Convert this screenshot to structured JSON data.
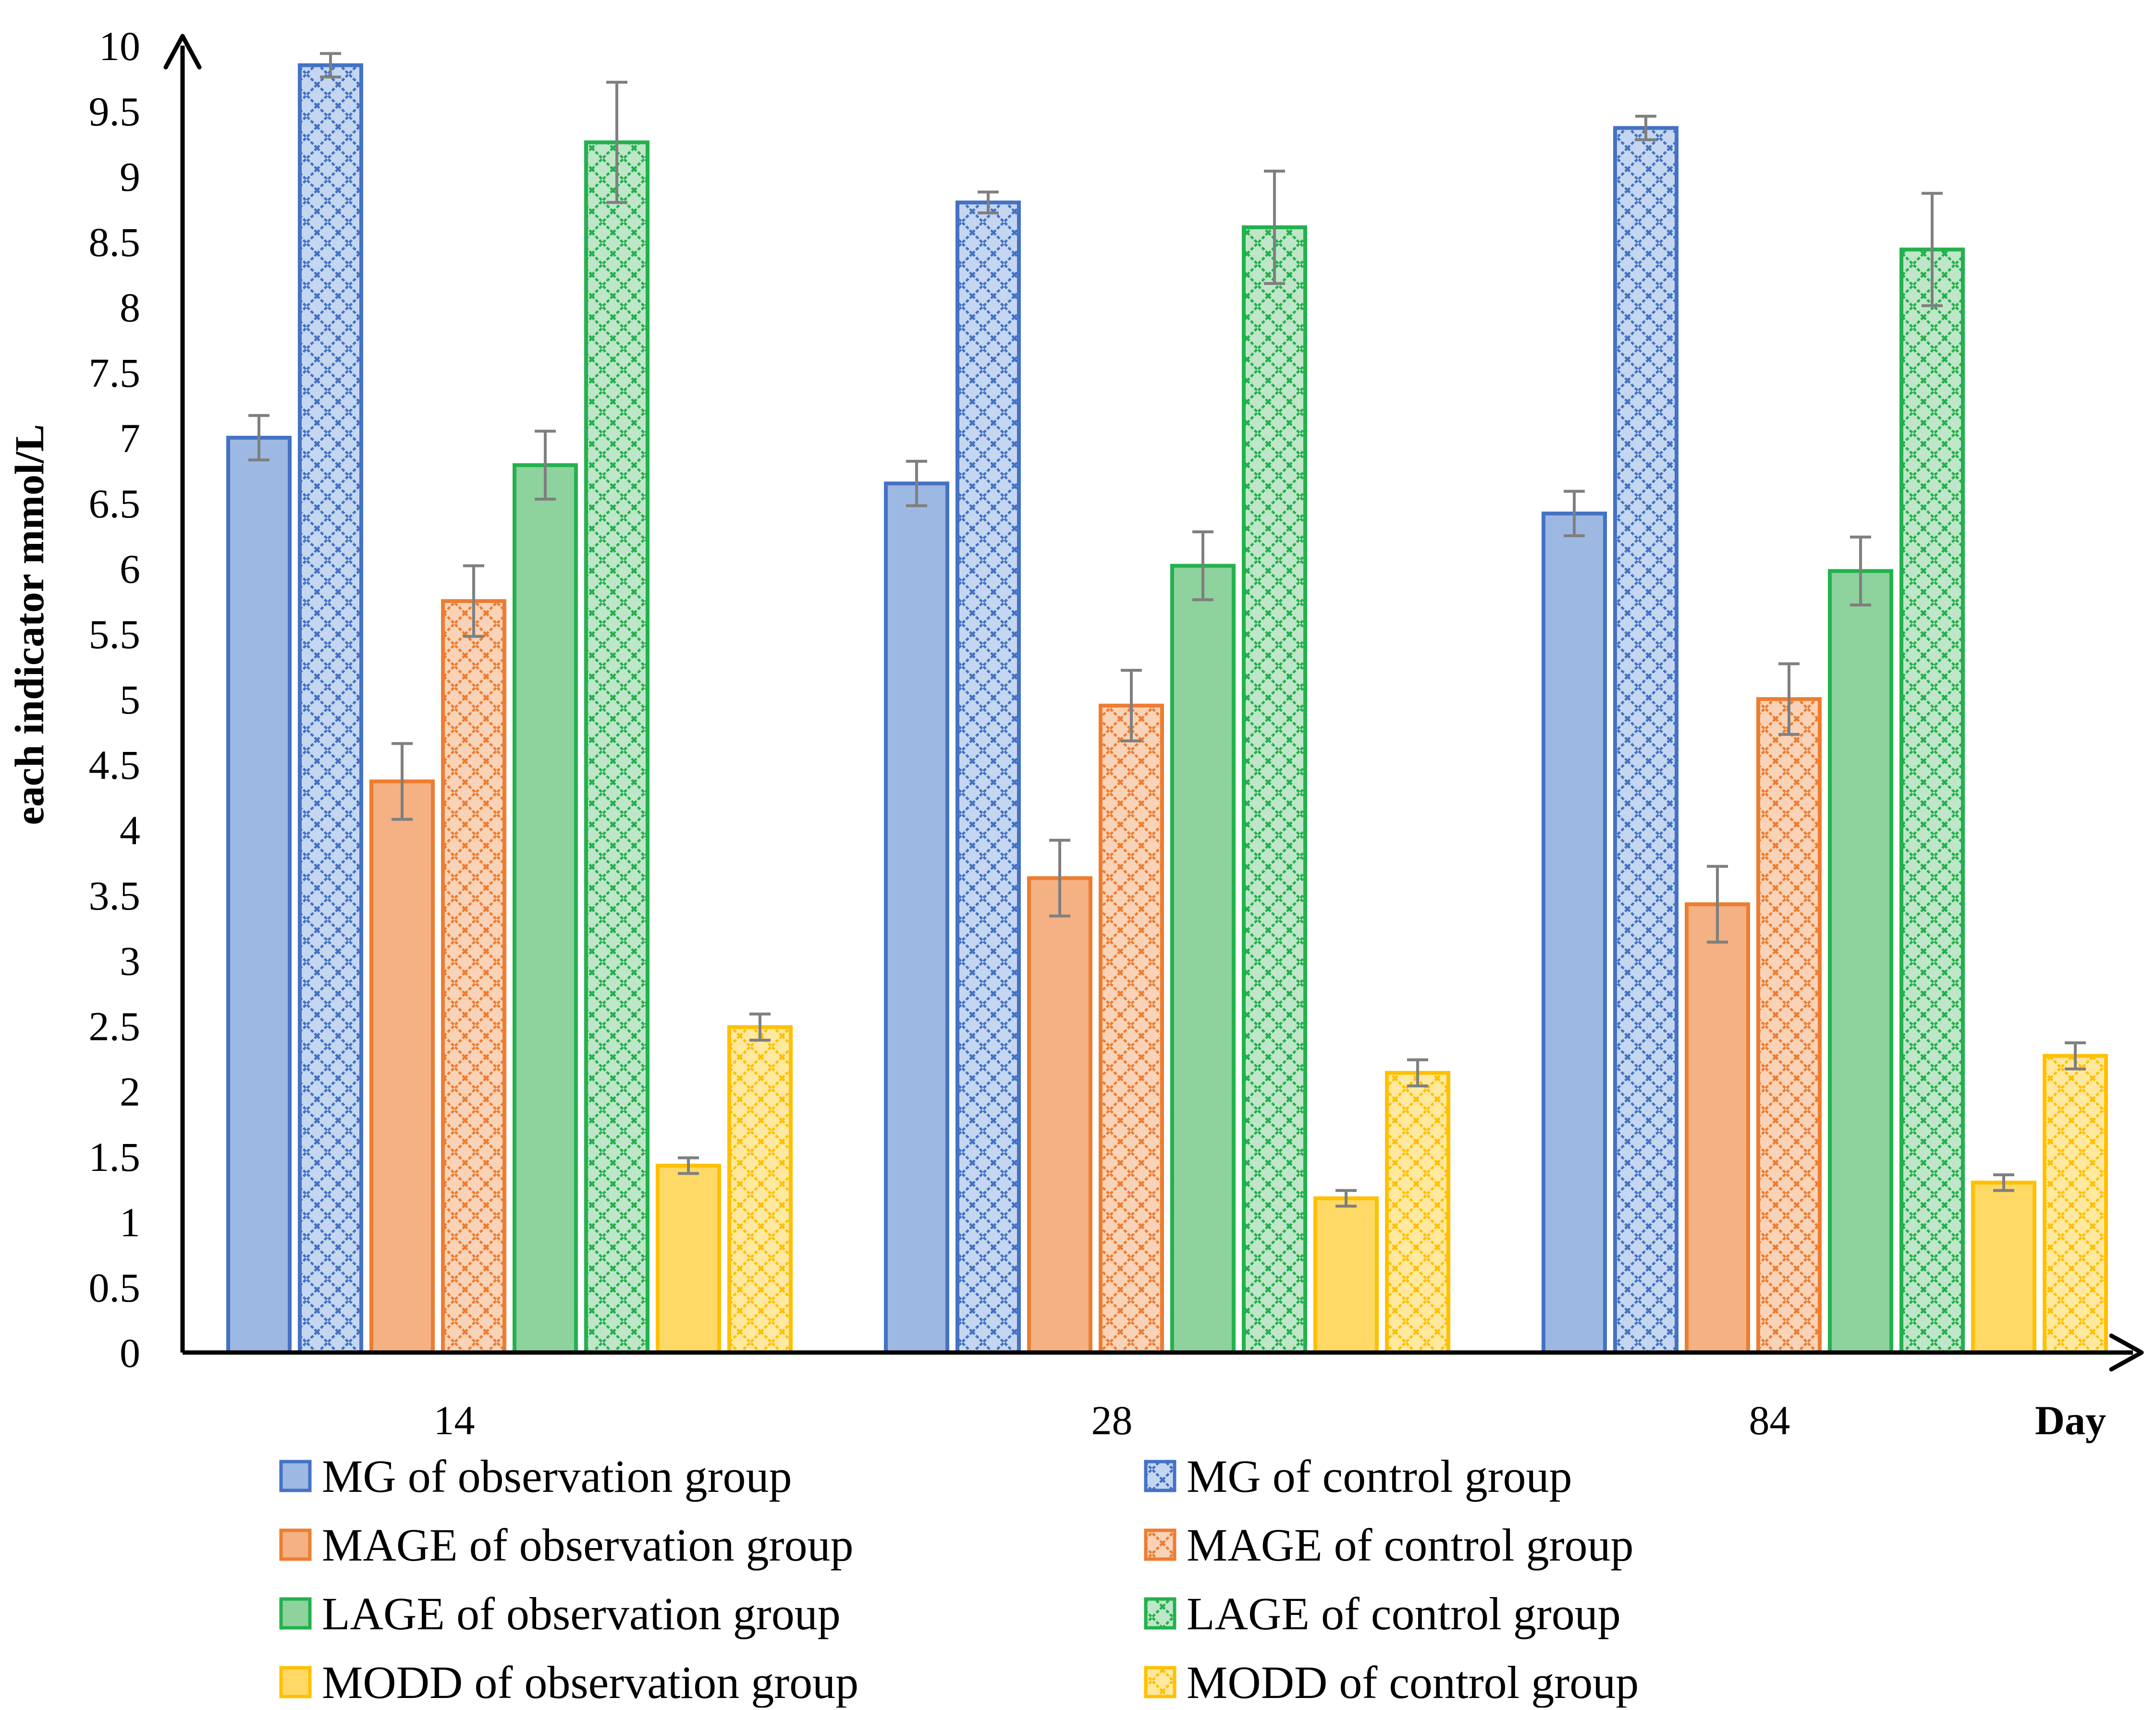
{
  "chart_data": {
    "type": "bar",
    "title": "",
    "xlabel": "Day",
    "ylabel": "each indicator mmol/L",
    "ylim": [
      0,
      10
    ],
    "ytick_step": 0.5,
    "yticks": [
      "0",
      "0.5",
      "1",
      "1.5",
      "2",
      "2.5",
      "3",
      "3.5",
      "4",
      "4.5",
      "5",
      "5.5",
      "6",
      "6.5",
      "7",
      "7.5",
      "8",
      "8.5",
      "9",
      "9.5",
      "10"
    ],
    "categories": [
      "14",
      "28",
      "84"
    ],
    "grid": false,
    "legend_position": "bottom",
    "series": [
      {
        "name": "MG of observation group",
        "values": [
          7.0,
          6.65,
          6.42
        ],
        "errors": [
          0.17,
          0.17,
          0.17
        ],
        "color": "#9DB8E2",
        "stroke": "#4472C4",
        "pattern": "solid"
      },
      {
        "name": "MG of control group",
        "values": [
          9.85,
          8.8,
          9.37
        ],
        "errors": [
          0.09,
          0.08,
          0.09
        ],
        "color": "#C5D7F0",
        "stroke": "#4472C4",
        "pattern": "hatched"
      },
      {
        "name": "MAGE of observation group",
        "values": [
          4.37,
          3.63,
          3.43
        ],
        "errors": [
          0.29,
          0.29,
          0.29
        ],
        "color": "#F4B183",
        "stroke": "#ED7D31",
        "pattern": "solid"
      },
      {
        "name": "MAGE of control group",
        "values": [
          5.75,
          4.95,
          5.0
        ],
        "errors": [
          0.27,
          0.27,
          0.27
        ],
        "color": "#F9D3B8",
        "stroke": "#ED7D31",
        "pattern": "hatched"
      },
      {
        "name": "LAGE of observation group",
        "values": [
          6.79,
          6.02,
          5.98
        ],
        "errors": [
          0.26,
          0.26,
          0.26
        ],
        "color": "#8ED29E",
        "stroke": "#23B14D",
        "pattern": "solid"
      },
      {
        "name": "LAGE of control group",
        "values": [
          9.26,
          8.61,
          8.44
        ],
        "errors": [
          0.46,
          0.43,
          0.43
        ],
        "color": "#BFE6C8",
        "stroke": "#23B14D",
        "pattern": "hatched"
      },
      {
        "name": "MODD of observation group",
        "values": [
          1.43,
          1.18,
          1.3
        ],
        "errors": [
          0.06,
          0.06,
          0.06
        ],
        "color": "#FFD966",
        "stroke": "#FFC000",
        "pattern": "solid"
      },
      {
        "name": "MODD of control group",
        "values": [
          2.49,
          2.14,
          2.27
        ],
        "errors": [
          0.1,
          0.1,
          0.1
        ],
        "color": "#FFE9A0",
        "stroke": "#FFC000",
        "pattern": "hatched"
      }
    ]
  }
}
